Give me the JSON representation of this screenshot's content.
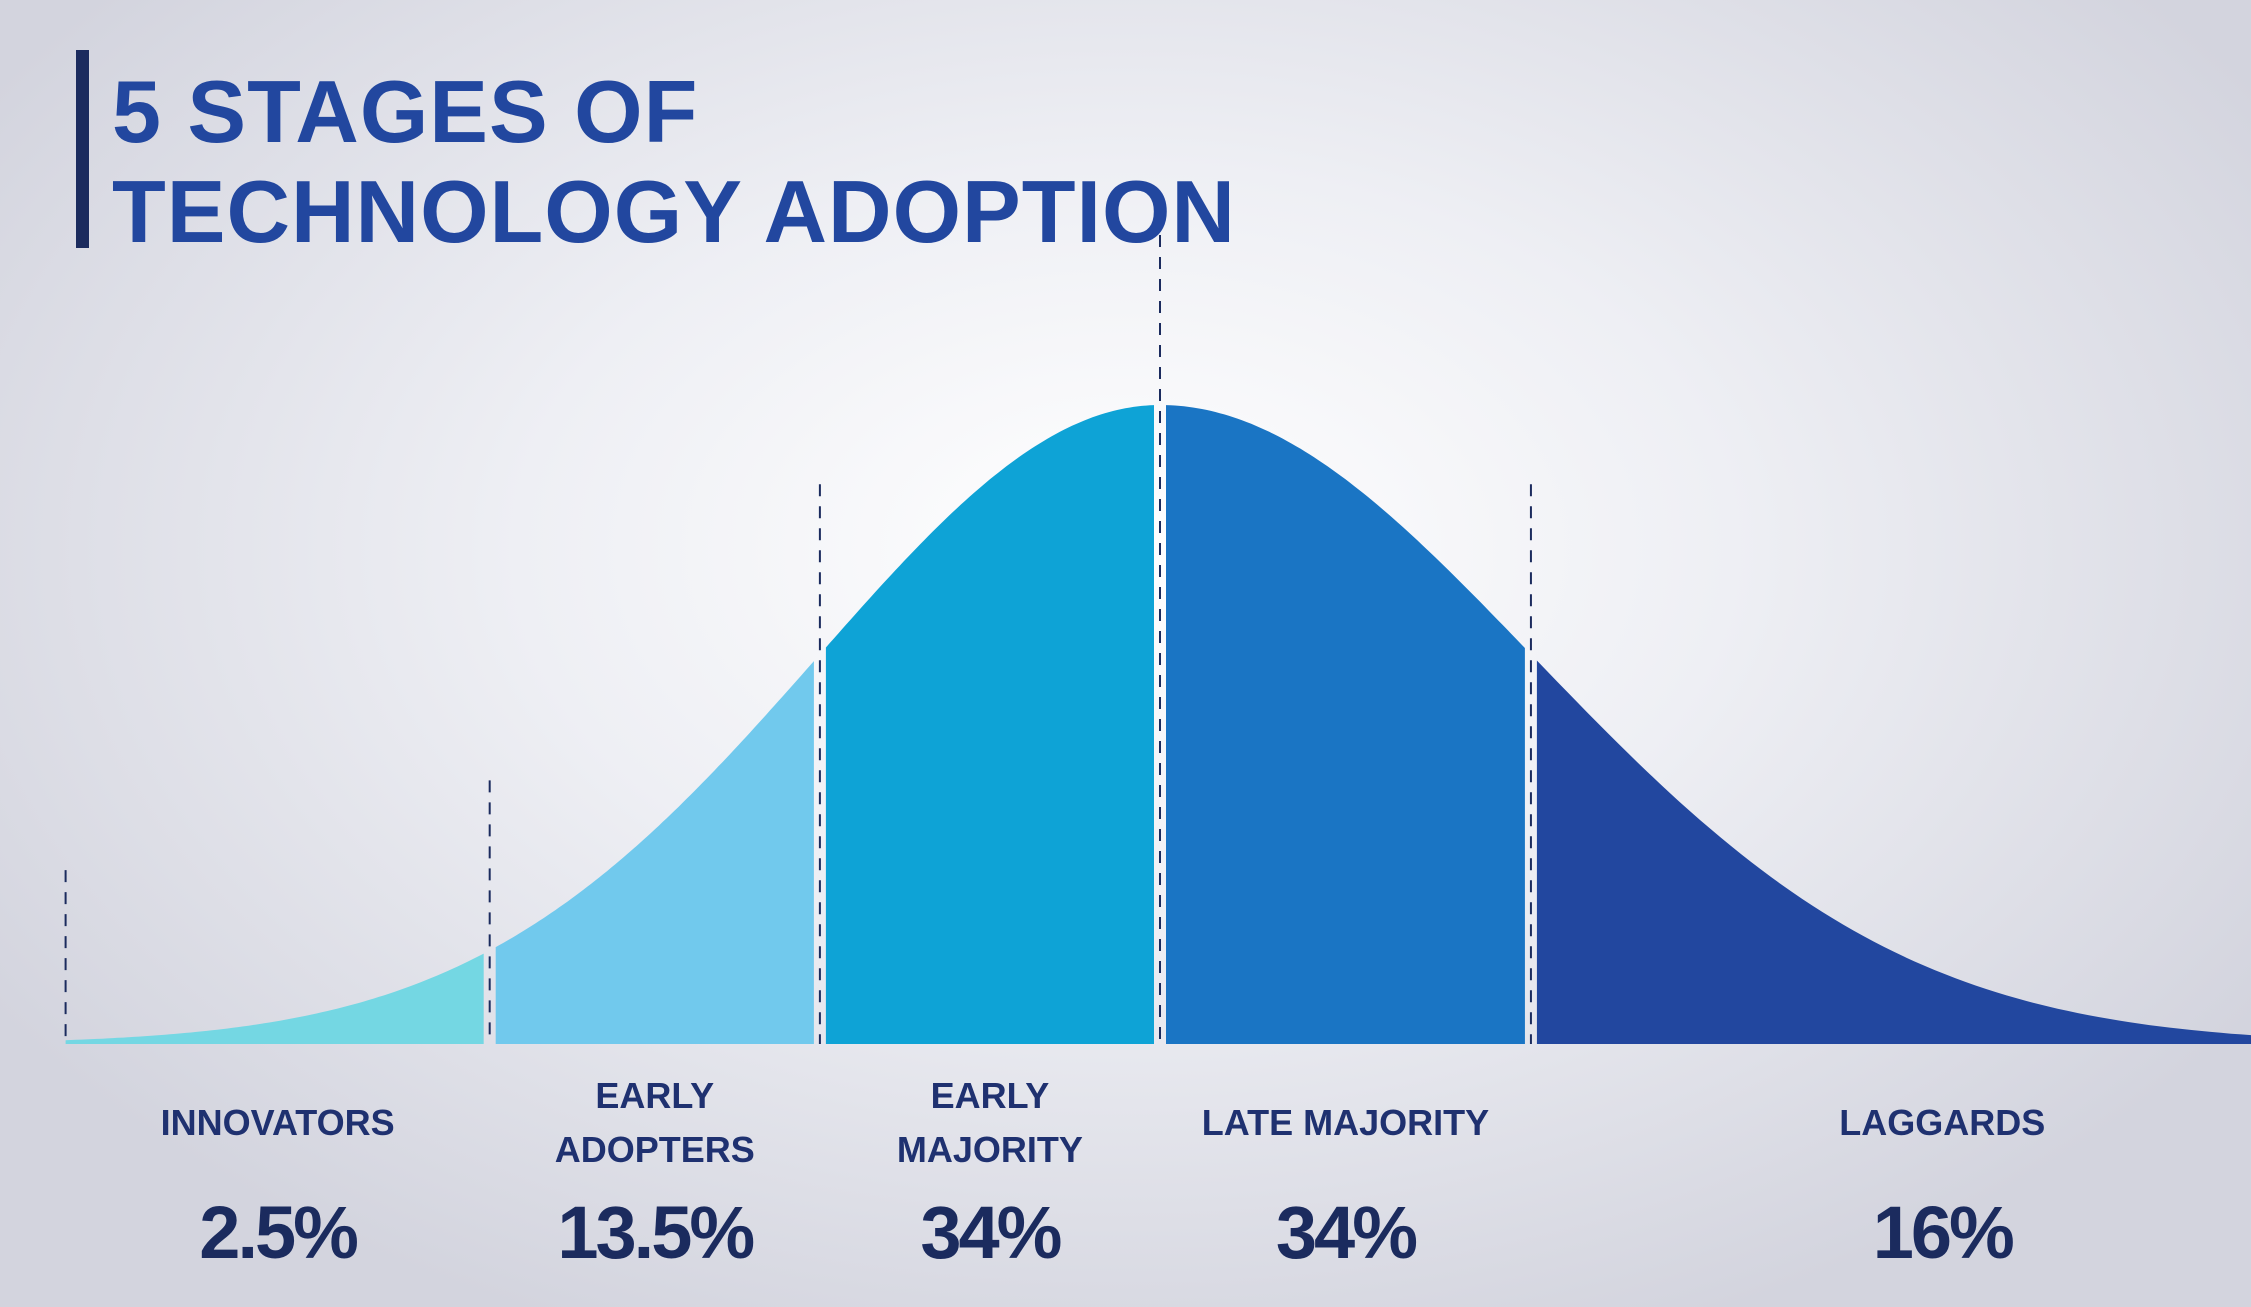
{
  "chart_data": {
    "type": "bell",
    "title": "5 STAGES OF TECHNOLOGY ADOPTION",
    "categories": [
      "INNOVATORS",
      "EARLY ADOPTERS",
      "EARLY MAJORITY",
      "LATE MAJORITY",
      "LAGGARDS"
    ],
    "values": [
      2.5,
      13.5,
      34,
      34,
      16
    ],
    "value_labels": [
      "2.5%",
      "13.5%",
      "34%",
      "34%",
      "16%"
    ],
    "colors": [
      "#74d7e3",
      "#71c9ed",
      "#0ea3d6",
      "#1a75c4",
      "#22479f"
    ]
  }
}
